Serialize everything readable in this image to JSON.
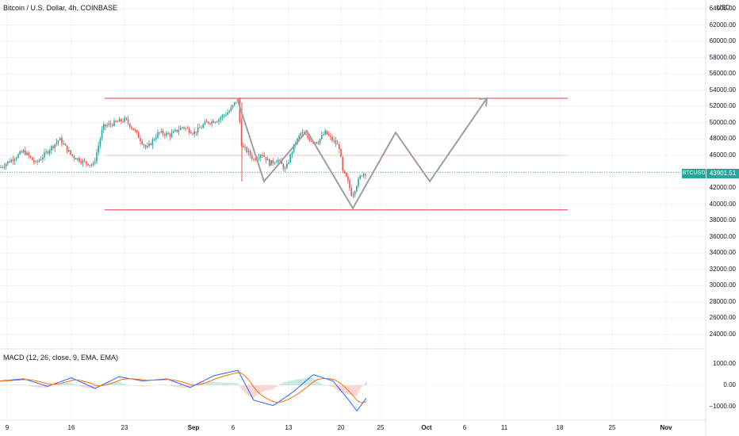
{
  "header": {
    "title": "Bitcoin / U.S. Dollar, 4h, COINBASE",
    "currency": "USD"
  },
  "price_badge": {
    "ticker": "BTCUSD",
    "value": "43901.51"
  },
  "macd_label": "MACD (12, 26, close, 9, EMA, EMA)",
  "colors": {
    "up": "#26a69a",
    "down": "#ef5350",
    "range_line": "#f23645",
    "projection": "#9e9e9e",
    "macd_line": "#2962ff",
    "signal_line": "#ff6d00"
  },
  "price_axis": [
    "64000.00",
    "62000.00",
    "60000.00",
    "58000.00",
    "56000.00",
    "54000.00",
    "52000.00",
    "50000.00",
    "48000.00",
    "46000.00",
    "44000.00",
    "42000.00",
    "40000.00",
    "38000.00",
    "36000.00",
    "34000.00",
    "32000.00",
    "30000.00",
    "28000.00",
    "26000.00",
    "24000.00"
  ],
  "macd_axis": [
    "1000.00",
    "0.00",
    "−1000.00"
  ],
  "time_axis": [
    {
      "label": "9",
      "bold": false
    },
    {
      "label": "16",
      "bold": false
    },
    {
      "label": "23",
      "bold": false
    },
    {
      "label": "Sep",
      "bold": true
    },
    {
      "label": "6",
      "bold": false
    },
    {
      "label": "13",
      "bold": false
    },
    {
      "label": "20",
      "bold": false
    },
    {
      "label": "25",
      "bold": false
    },
    {
      "label": "Oct",
      "bold": true
    },
    {
      "label": "6",
      "bold": false
    },
    {
      "label": "11",
      "bold": false
    },
    {
      "label": "18",
      "bold": false
    },
    {
      "label": "25",
      "bold": false
    },
    {
      "label": "Nov",
      "bold": true
    }
  ],
  "annotations": {
    "range_top_price": 53000,
    "range_bottom_price": 39300,
    "mid_level_price": 46000,
    "projection_path_prices": [
      53000,
      42800,
      49000,
      39500,
      48800,
      42800,
      53000
    ]
  }
}
